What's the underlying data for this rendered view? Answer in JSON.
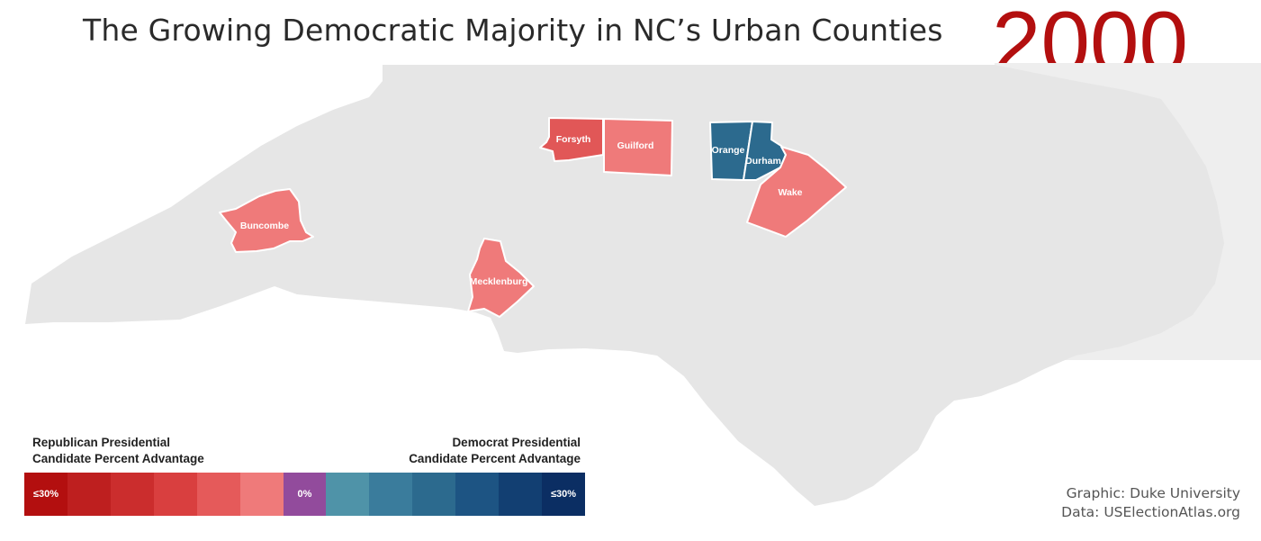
{
  "title": "The Growing Democratic Majority in NC’s Urban Counties",
  "year": "2000",
  "year_color": "#b30f0f",
  "colors": {
    "state_fill": "#e6e6e6",
    "county_border": "#ffffff"
  },
  "counties": [
    {
      "name": "Buncombe",
      "color": "#ef7a7a",
      "lean": "Republican"
    },
    {
      "name": "Forsyth",
      "color": "#e15757",
      "lean": "Republican"
    },
    {
      "name": "Guilford",
      "color": "#ef7a7a",
      "lean": "Republican"
    },
    {
      "name": "Orange",
      "color": "#2c6a8e",
      "lean": "Democrat"
    },
    {
      "name": "Durham",
      "color": "#2c6a8e",
      "lean": "Democrat"
    },
    {
      "name": "Wake",
      "color": "#ef7a7a",
      "lean": "Republican"
    },
    {
      "name": "Mecklenburg",
      "color": "#ef7a7a",
      "lean": "Republican"
    }
  ],
  "legend": {
    "republican_heading": [
      "Republican Presidential",
      "Candidate Percent Advantage"
    ],
    "democrat_heading": [
      "Democrat Presidential",
      "Candidate Percent Advantage"
    ],
    "swatches": [
      {
        "color": "#b30f0f",
        "label": "≤30%"
      },
      {
        "color": "#be1f1f",
        "label": ""
      },
      {
        "color": "#cb2d2d",
        "label": ""
      },
      {
        "color": "#d93f3f",
        "label": ""
      },
      {
        "color": "#e55a5a",
        "label": ""
      },
      {
        "color": "#ef7a7a",
        "label": ""
      },
      {
        "color": "#924b9c",
        "label": "0%"
      },
      {
        "color": "#4f93a8",
        "label": ""
      },
      {
        "color": "#3a7c9c",
        "label": ""
      },
      {
        "color": "#2c6a8e",
        "label": ""
      },
      {
        "color": "#1d5483",
        "label": ""
      },
      {
        "color": "#123f72",
        "label": ""
      },
      {
        "color": "#0b2e63",
        "label": "≤30%"
      }
    ]
  },
  "credits": {
    "graphic": "Graphic: Duke University",
    "data": "Data: USElectionAtlas.org"
  }
}
